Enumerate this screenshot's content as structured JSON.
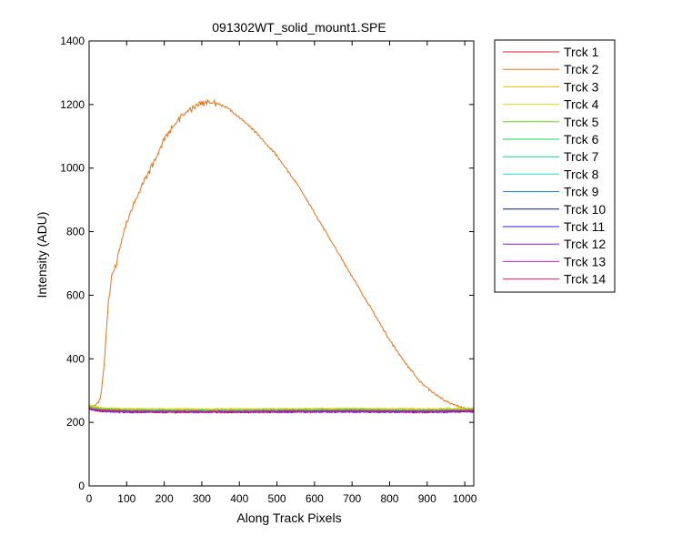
{
  "chart_data": {
    "type": "line",
    "title": "091302WT_solid_mount1.SPE",
    "xlabel": "Along Track Pixels",
    "ylabel": "Intensity (ADU)",
    "xlim": [
      0,
      1024
    ],
    "ylim": [
      0,
      1400
    ],
    "xticks": [
      0,
      100,
      200,
      300,
      400,
      500,
      600,
      700,
      800,
      900,
      1000
    ],
    "yticks": [
      0,
      200,
      400,
      600,
      800,
      1000,
      1200,
      1400
    ],
    "grid": false,
    "legend_position": "outside-right",
    "series": [
      {
        "name": "Trck 1",
        "color": "#d8202a",
        "points": [
          [
            1,
            250
          ],
          [
            30,
            243
          ],
          [
            100,
            238
          ],
          [
            300,
            236
          ],
          [
            500,
            237
          ],
          [
            700,
            238
          ],
          [
            900,
            237
          ],
          [
            1024,
            240
          ]
        ]
      },
      {
        "name": "Trck 2",
        "color": "#e8731a",
        "points": [
          [
            1,
            255
          ],
          [
            10,
            252
          ],
          [
            20,
            258
          ],
          [
            30,
            275
          ],
          [
            40,
            380
          ],
          [
            50,
            560
          ],
          [
            60,
            660
          ],
          [
            70,
            690
          ],
          [
            80,
            740
          ],
          [
            90,
            790
          ],
          [
            100,
            830
          ],
          [
            120,
            890
          ],
          [
            150,
            970
          ],
          [
            180,
            1040
          ],
          [
            200,
            1090
          ],
          [
            220,
            1130
          ],
          [
            250,
            1170
          ],
          [
            280,
            1195
          ],
          [
            300,
            1205
          ],
          [
            320,
            1210
          ],
          [
            340,
            1205
          ],
          [
            360,
            1195
          ],
          [
            380,
            1180
          ],
          [
            400,
            1160
          ],
          [
            420,
            1140
          ],
          [
            450,
            1105
          ],
          [
            480,
            1065
          ],
          [
            500,
            1040
          ],
          [
            530,
            990
          ],
          [
            560,
            940
          ],
          [
            600,
            860
          ],
          [
            640,
            780
          ],
          [
            680,
            700
          ],
          [
            720,
            620
          ],
          [
            760,
            540
          ],
          [
            800,
            460
          ],
          [
            840,
            390
          ],
          [
            880,
            330
          ],
          [
            920,
            290
          ],
          [
            960,
            260
          ],
          [
            1000,
            245
          ],
          [
            1024,
            243
          ]
        ]
      },
      {
        "name": "Trck 3",
        "color": "#f5b800",
        "points": [
          [
            1,
            252
          ],
          [
            30,
            245
          ],
          [
            100,
            241
          ],
          [
            300,
            240
          ],
          [
            500,
            241
          ],
          [
            700,
            242
          ],
          [
            900,
            241
          ],
          [
            1024,
            243
          ]
        ]
      },
      {
        "name": "Trck 4",
        "color": "#d6dc1e",
        "points": [
          [
            1,
            253
          ],
          [
            30,
            246
          ],
          [
            100,
            243
          ],
          [
            300,
            242
          ],
          [
            500,
            243
          ],
          [
            700,
            244
          ],
          [
            900,
            243
          ],
          [
            1024,
            245
          ]
        ]
      },
      {
        "name": "Trck 5",
        "color": "#6cd424",
        "points": [
          [
            1,
            248
          ],
          [
            30,
            242
          ],
          [
            100,
            239
          ],
          [
            300,
            238
          ],
          [
            500,
            239
          ],
          [
            700,
            240
          ],
          [
            900,
            239
          ],
          [
            1024,
            241
          ]
        ]
      },
      {
        "name": "Trck 6",
        "color": "#1ed45a",
        "points": [
          [
            1,
            246
          ],
          [
            30,
            240
          ],
          [
            100,
            237
          ],
          [
            300,
            236
          ],
          [
            500,
            237
          ],
          [
            700,
            238
          ],
          [
            900,
            237
          ],
          [
            1024,
            239
          ]
        ]
      },
      {
        "name": "Trck 7",
        "color": "#20c8a0",
        "points": [
          [
            1,
            245
          ],
          [
            30,
            239
          ],
          [
            100,
            236
          ],
          [
            300,
            235
          ],
          [
            500,
            236
          ],
          [
            700,
            237
          ],
          [
            900,
            236
          ],
          [
            1024,
            238
          ]
        ]
      },
      {
        "name": "Trck 8",
        "color": "#2ad8dc",
        "points": [
          [
            1,
            244
          ],
          [
            30,
            238
          ],
          [
            100,
            235
          ],
          [
            300,
            234
          ],
          [
            500,
            235
          ],
          [
            700,
            236
          ],
          [
            900,
            235
          ],
          [
            1024,
            237
          ]
        ]
      },
      {
        "name": "Trck 9",
        "color": "#1c78c8",
        "points": [
          [
            1,
            243
          ],
          [
            30,
            237
          ],
          [
            100,
            234
          ],
          [
            300,
            233
          ],
          [
            500,
            234
          ],
          [
            700,
            235
          ],
          [
            900,
            234
          ],
          [
            1024,
            236
          ]
        ]
      },
      {
        "name": "Trck 10",
        "color": "#0a1a64",
        "points": [
          [
            1,
            242
          ],
          [
            30,
            236
          ],
          [
            100,
            233
          ],
          [
            300,
            232
          ],
          [
            500,
            233
          ],
          [
            700,
            234
          ],
          [
            900,
            233
          ],
          [
            1024,
            235
          ]
        ]
      },
      {
        "name": "Trck 11",
        "color": "#3018c8",
        "points": [
          [
            1,
            241
          ],
          [
            30,
            235
          ],
          [
            100,
            232
          ],
          [
            300,
            232
          ],
          [
            500,
            232
          ],
          [
            700,
            233
          ],
          [
            900,
            232
          ],
          [
            1024,
            234
          ]
        ]
      },
      {
        "name": "Trck 12",
        "color": "#8a18c8",
        "points": [
          [
            1,
            242
          ],
          [
            30,
            236
          ],
          [
            100,
            233
          ],
          [
            300,
            232
          ],
          [
            500,
            233
          ],
          [
            700,
            234
          ],
          [
            900,
            233
          ],
          [
            1024,
            235
          ]
        ]
      },
      {
        "name": "Trck 13",
        "color": "#cc20cc",
        "points": [
          [
            1,
            243
          ],
          [
            30,
            237
          ],
          [
            100,
            234
          ],
          [
            300,
            233
          ],
          [
            500,
            234
          ],
          [
            700,
            235
          ],
          [
            900,
            234
          ],
          [
            1024,
            236
          ]
        ]
      },
      {
        "name": "Trck 14",
        "color": "#d81c6a",
        "points": [
          [
            1,
            244
          ],
          [
            30,
            238
          ],
          [
            100,
            235
          ],
          [
            300,
            234
          ],
          [
            500,
            235
          ],
          [
            700,
            236
          ],
          [
            900,
            235
          ],
          [
            1024,
            237
          ]
        ]
      }
    ]
  }
}
